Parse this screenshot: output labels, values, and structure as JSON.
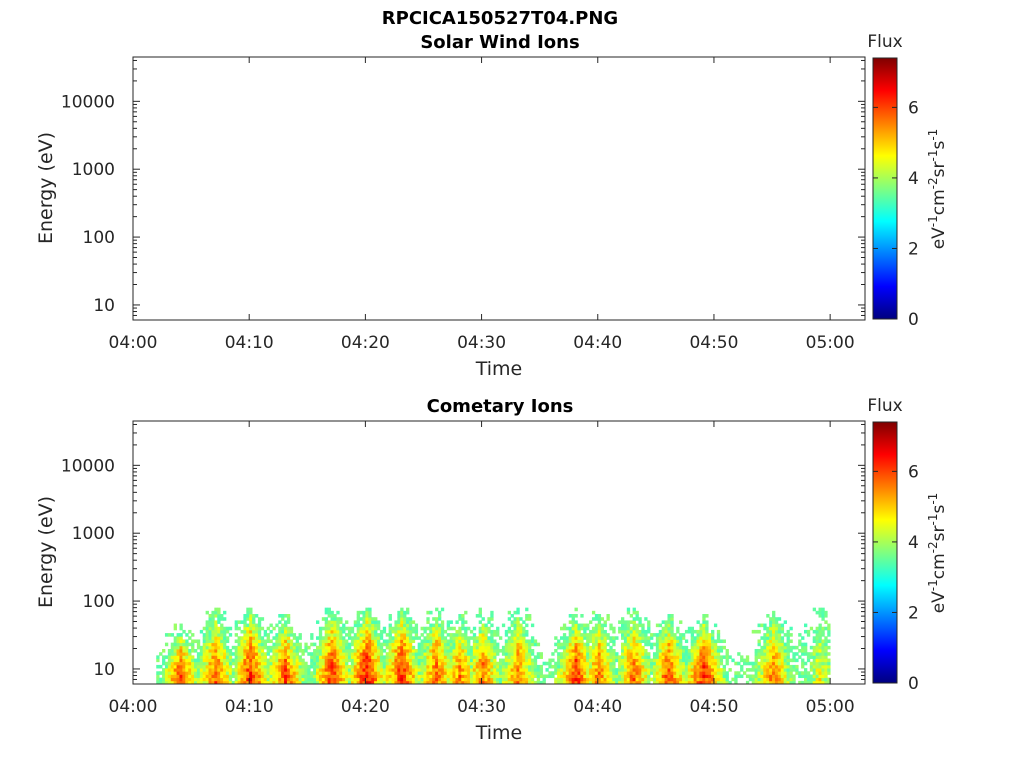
{
  "figure": {
    "filename": "RPCICA150527T04.PNG"
  },
  "chart_data": [
    {
      "type": "heatmap",
      "title": "Solar Wind Ions",
      "xlabel": "Time",
      "ylabel": "Energy (eV)",
      "y_scale": "log",
      "ylim": [
        6,
        45000
      ],
      "xlim": [
        "04:00",
        "05:03"
      ],
      "x_ticks": [
        "04:00",
        "04:10",
        "04:20",
        "04:30",
        "04:40",
        "04:50",
        "05:00"
      ],
      "y_ticks": [
        "10",
        "100",
        "1000",
        "10000"
      ],
      "colorbar": {
        "label": "Flux",
        "units": "eV-1cm-2sr-1s-1",
        "range": [
          0,
          7.4
        ],
        "ticks": [
          "0",
          "2",
          "4",
          "6"
        ],
        "colormap": "jet"
      },
      "data": []
    },
    {
      "type": "heatmap",
      "title": "Cometary Ions",
      "xlabel": "Time",
      "ylabel": "Energy (eV)",
      "y_scale": "log",
      "ylim": [
        6,
        45000
      ],
      "xlim": [
        "04:00",
        "05:03"
      ],
      "x_ticks": [
        "04:00",
        "04:10",
        "04:20",
        "04:30",
        "04:40",
        "04:50",
        "05:00"
      ],
      "y_ticks": [
        "10",
        "100",
        "1000",
        "10000"
      ],
      "colorbar": {
        "label": "Flux",
        "units": "eV-1cm-2sr-1s-1",
        "range": [
          0,
          7.4
        ],
        "ticks": [
          "0",
          "2",
          "4",
          "6"
        ],
        "colormap": "jet"
      },
      "data_range": {
        "time_start": "04:02",
        "time_end": "05:00",
        "energy_min_eV": 6,
        "energy_max_eV": 80
      },
      "bursts": [
        {
          "time": "04:04",
          "peak_eV": 40,
          "flux": 6.6
        },
        {
          "time": "04:07",
          "peak_eV": 80,
          "flux": 6.4
        },
        {
          "time": "04:10",
          "peak_eV": 80,
          "flux": 6.8
        },
        {
          "time": "04:13",
          "peak_eV": 60,
          "flux": 6.6
        },
        {
          "time": "04:17",
          "peak_eV": 80,
          "flux": 6.7
        },
        {
          "time": "04:20",
          "peak_eV": 80,
          "flux": 7.0
        },
        {
          "time": "04:23",
          "peak_eV": 80,
          "flux": 6.8
        },
        {
          "time": "04:26",
          "peak_eV": 80,
          "flux": 6.4
        },
        {
          "time": "04:28",
          "peak_eV": 60,
          "flux": 6.2
        },
        {
          "time": "04:30",
          "peak_eV": 70,
          "flux": 6.3
        },
        {
          "time": "04:33",
          "peak_eV": 80,
          "flux": 6.2
        },
        {
          "time": "04:38",
          "peak_eV": 60,
          "flux": 6.8
        },
        {
          "time": "04:40",
          "peak_eV": 70,
          "flux": 6.2
        },
        {
          "time": "04:43",
          "peak_eV": 80,
          "flux": 6.3
        },
        {
          "time": "04:46",
          "peak_eV": 60,
          "flux": 6.6
        },
        {
          "time": "04:49",
          "peak_eV": 60,
          "flux": 6.9
        },
        {
          "time": "04:55",
          "peak_eV": 80,
          "flux": 6.2
        },
        {
          "time": "04:59",
          "peak_eV": 80,
          "flux": 5.2
        }
      ]
    }
  ]
}
